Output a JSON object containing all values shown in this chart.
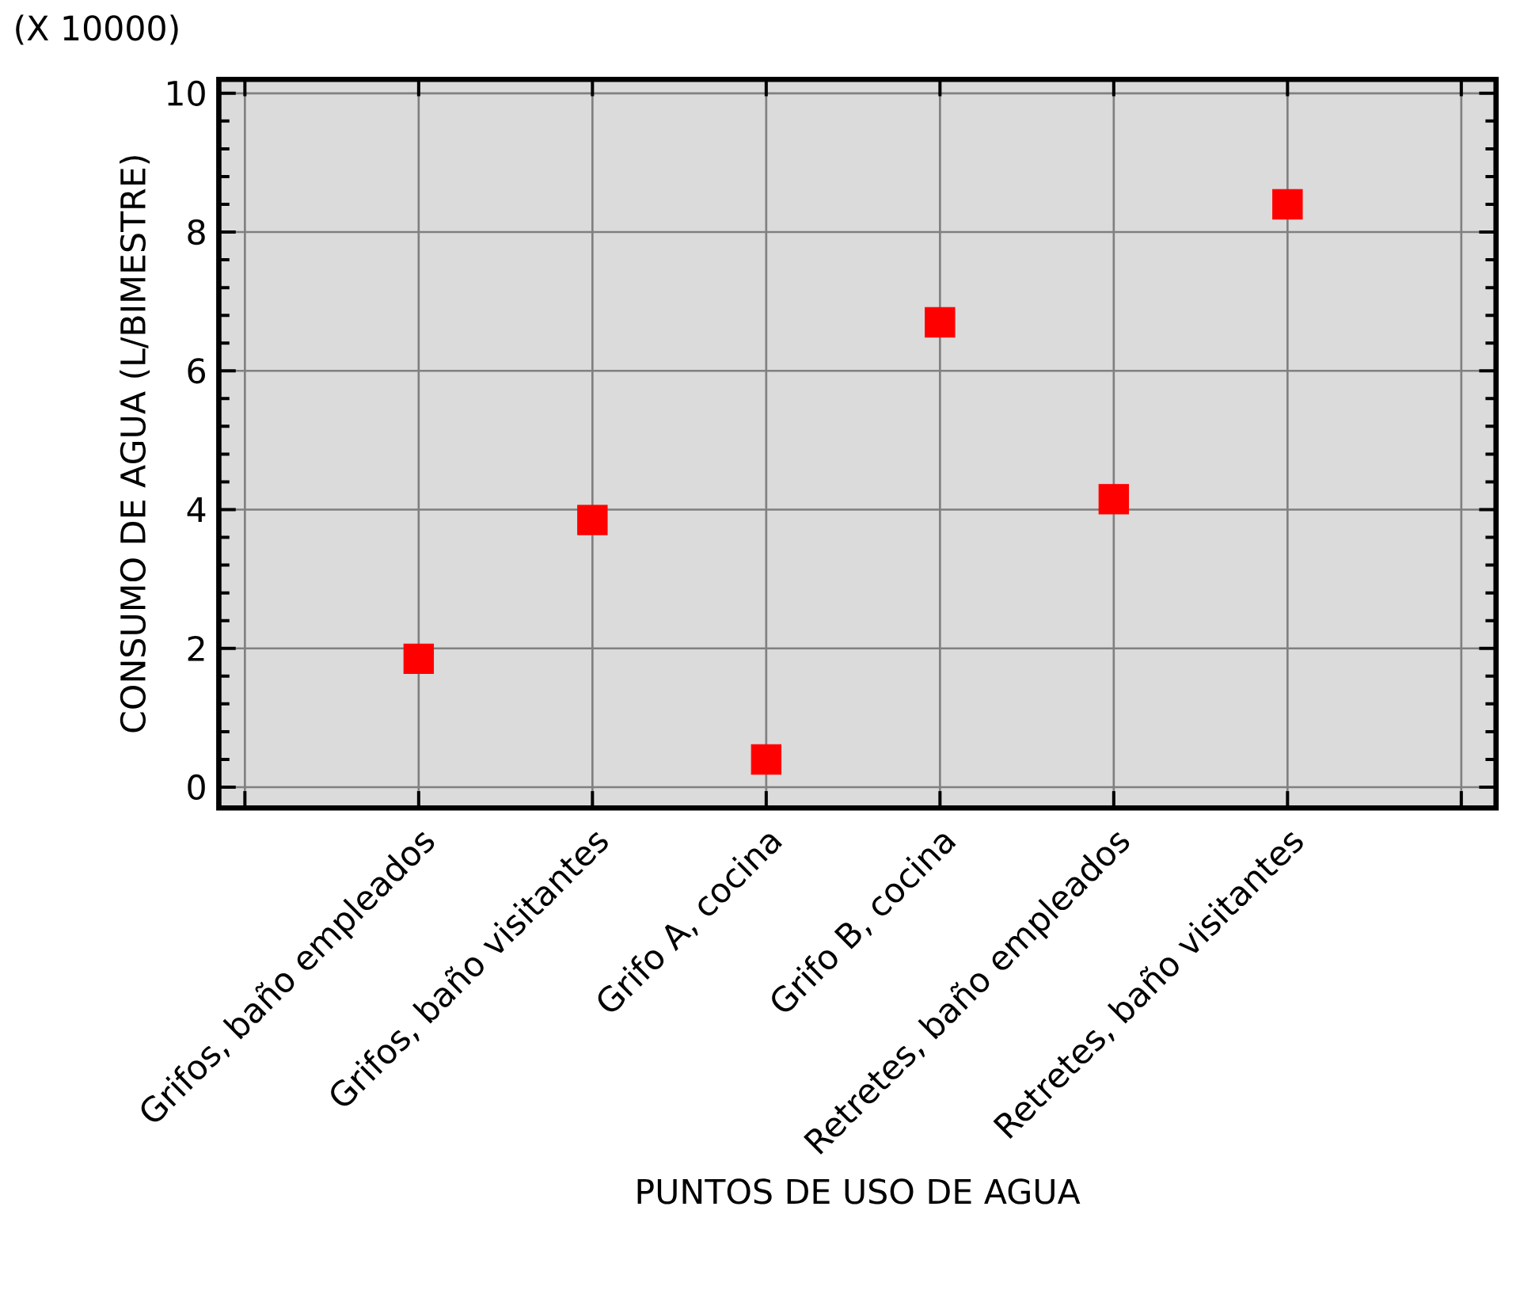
{
  "chart_data": {
    "type": "scatter",
    "xlabel": "PUNTOS DE USO DE AGUA",
    "ylabel": "CONSUMO DE AGUA (L/BIMESTRE)",
    "annotations": [
      "(X 10000)"
    ],
    "categories": [
      null,
      "Grifos, baño empleados",
      "Grifos, baño visitantes",
      "Grifo A, cocina",
      "Grifo B, cocina",
      "Retretes, baño empleados",
      "Retretes, baño visitantes",
      null
    ],
    "values": [
      null,
      1.85,
      3.85,
      0.4,
      6.7,
      4.15,
      8.4,
      null
    ],
    "color": "#ff0000",
    "marker": "square",
    "grid": true,
    "ylim": [
      -0.3,
      10.2
    ],
    "yticks": [
      0,
      2,
      4,
      6,
      8,
      10
    ]
  }
}
